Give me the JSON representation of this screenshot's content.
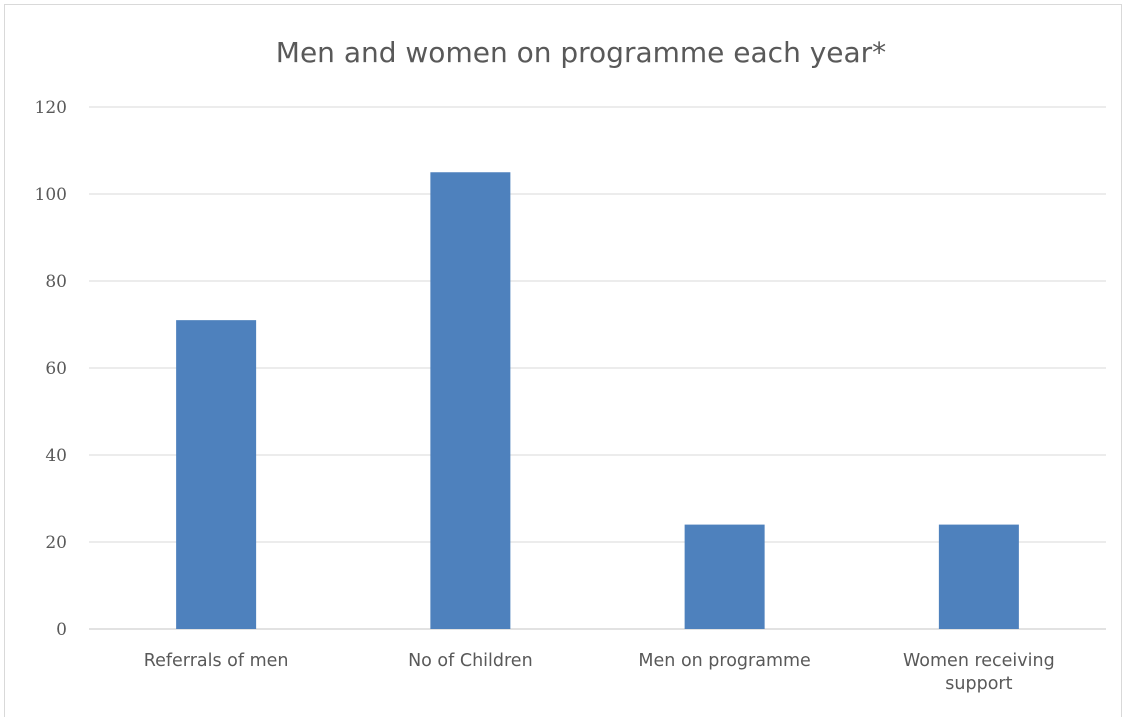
{
  "chart_data": {
    "type": "bar",
    "title": "Men and women on programme each year*",
    "xlabel": "",
    "ylabel": "",
    "categories": [
      [
        "Referrals of men"
      ],
      [
        "No of Children"
      ],
      [
        "Men on programme"
      ],
      [
        "Women receiving",
        "support"
      ]
    ],
    "values": [
      71,
      105,
      24,
      24
    ],
    "ylim": [
      0,
      120
    ],
    "yticks": [
      0,
      20,
      40,
      60,
      80,
      100,
      120
    ],
    "grid": true,
    "legend": "none",
    "bar_color": "#4e81bd",
    "grid_color": "#d9d9d9"
  }
}
